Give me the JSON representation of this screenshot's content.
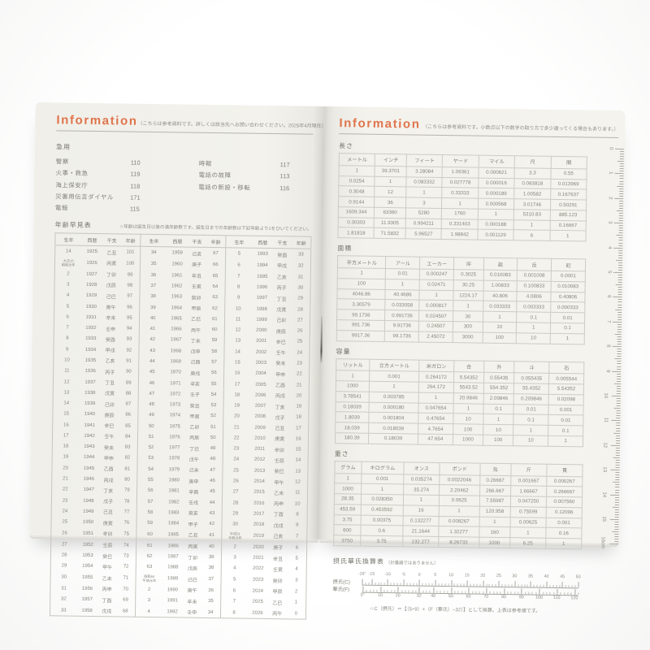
{
  "colors": {
    "accent": "#e0744c",
    "page": "#f2f1ec",
    "text": "#81817a"
  },
  "left_page": {
    "title": "Information",
    "note": "（こちらは参考資料です。詳しくは該当先へお問い合わせください。2025年4月現在）",
    "emergency": {
      "label": "急用",
      "left": [
        [
          "警察",
          "110"
        ],
        [
          "火事・救急",
          "119"
        ],
        [
          "海上保安庁",
          "118"
        ],
        [
          "災害用伝言ダイヤル",
          "171"
        ],
        [
          "電報",
          "115"
        ]
      ],
      "right": [
        [
          "時報",
          "117"
        ],
        [
          "電話の故障",
          "113"
        ],
        [
          "電話の新設・移転",
          "116"
        ]
      ]
    },
    "age_chart": {
      "label": "年齢早見表",
      "note": "☆年齢は誕生日以後の満年齢数です。誕生日までの年齢数は下記年齢より1をひいてください。",
      "columns": [
        "生年",
        "西暦",
        "干支",
        "年齢",
        "生年",
        "西暦",
        "干支",
        "年齢",
        "生年",
        "西暦",
        "干支",
        "年齢"
      ],
      "rows": [
        [
          "14",
          "1925",
          "乙丑",
          "101",
          "34",
          "1959",
          "己亥",
          "67",
          "5",
          "1993",
          "癸酉",
          "33"
        ],
        [
          "大正15\n昭和元年",
          "1926",
          "丙寅",
          "100",
          "35",
          "1960",
          "庚子",
          "66",
          "6",
          "1994",
          "甲戌",
          "32"
        ],
        [
          "2",
          "1927",
          "丁卯",
          "99",
          "36",
          "1961",
          "辛丑",
          "65",
          "7",
          "1995",
          "乙亥",
          "31"
        ],
        [
          "3",
          "1928",
          "戊辰",
          "98",
          "37",
          "1962",
          "壬寅",
          "64",
          "8",
          "1996",
          "丙子",
          "30"
        ],
        [
          "4",
          "1929",
          "己巳",
          "97",
          "38",
          "1963",
          "癸卯",
          "63",
          "9",
          "1997",
          "丁丑",
          "29"
        ],
        [
          "5",
          "1930",
          "庚午",
          "96",
          "39",
          "1964",
          "甲辰",
          "62",
          "10",
          "1998",
          "戊寅",
          "28"
        ],
        [
          "6",
          "1931",
          "辛未",
          "95",
          "40",
          "1965",
          "乙巳",
          "61",
          "11",
          "1999",
          "己卯",
          "27"
        ],
        [
          "7",
          "1932",
          "壬申",
          "94",
          "41",
          "1966",
          "丙午",
          "60",
          "12",
          "2000",
          "庚辰",
          "26"
        ],
        [
          "8",
          "1933",
          "癸酉",
          "93",
          "42",
          "1967",
          "丁未",
          "59",
          "13",
          "2001",
          "辛巳",
          "25"
        ],
        [
          "9",
          "1934",
          "甲戌",
          "92",
          "43",
          "1968",
          "戊申",
          "58",
          "14",
          "2002",
          "壬午",
          "24"
        ],
        [
          "10",
          "1935",
          "乙亥",
          "91",
          "44",
          "1969",
          "己酉",
          "57",
          "15",
          "2003",
          "癸未",
          "23"
        ],
        [
          "11",
          "1936",
          "丙子",
          "90",
          "45",
          "1970",
          "庚戌",
          "56",
          "16",
          "2004",
          "甲申",
          "22"
        ],
        [
          "12",
          "1937",
          "丁丑",
          "89",
          "46",
          "1971",
          "辛亥",
          "55",
          "17",
          "2005",
          "乙酉",
          "21"
        ],
        [
          "13",
          "1938",
          "戊寅",
          "88",
          "47",
          "1972",
          "壬子",
          "54",
          "18",
          "2006",
          "丙戌",
          "20"
        ],
        [
          "14",
          "1939",
          "己卯",
          "87",
          "48",
          "1973",
          "癸丑",
          "53",
          "19",
          "2007",
          "丁亥",
          "19"
        ],
        [
          "15",
          "1940",
          "庚辰",
          "86",
          "49",
          "1974",
          "甲寅",
          "52",
          "20",
          "2008",
          "戊子",
          "18"
        ],
        [
          "16",
          "1941",
          "辛巳",
          "85",
          "50",
          "1975",
          "乙卯",
          "51",
          "21",
          "2009",
          "己丑",
          "17"
        ],
        [
          "17",
          "1942",
          "壬午",
          "84",
          "51",
          "1976",
          "丙辰",
          "50",
          "22",
          "2010",
          "庚寅",
          "16"
        ],
        [
          "18",
          "1943",
          "癸未",
          "83",
          "52",
          "1977",
          "丁巳",
          "49",
          "23",
          "2011",
          "辛卯",
          "15"
        ],
        [
          "19",
          "1944",
          "甲申",
          "82",
          "53",
          "1978",
          "戊午",
          "48",
          "24",
          "2012",
          "壬辰",
          "14"
        ],
        [
          "20",
          "1945",
          "乙酉",
          "81",
          "54",
          "1979",
          "己未",
          "47",
          "25",
          "2013",
          "癸巳",
          "13"
        ],
        [
          "21",
          "1946",
          "丙戌",
          "80",
          "55",
          "1980",
          "庚申",
          "46",
          "26",
          "2014",
          "甲午",
          "12"
        ],
        [
          "22",
          "1947",
          "丁亥",
          "79",
          "56",
          "1981",
          "辛酉",
          "45",
          "27",
          "2015",
          "乙未",
          "11"
        ],
        [
          "23",
          "1948",
          "戊子",
          "78",
          "57",
          "1982",
          "壬戌",
          "44",
          "28",
          "2016",
          "丙申",
          "10"
        ],
        [
          "24",
          "1949",
          "己丑",
          "77",
          "58",
          "1983",
          "癸亥",
          "43",
          "29",
          "2017",
          "丁酉",
          "9"
        ],
        [
          "25",
          "1950",
          "庚寅",
          "76",
          "59",
          "1984",
          "甲子",
          "42",
          "30",
          "2018",
          "戊戌",
          "8"
        ],
        [
          "26",
          "1951",
          "辛卯",
          "75",
          "60",
          "1985",
          "乙丑",
          "41",
          "平成31\n令和元年",
          "2019",
          "己亥",
          "7"
        ],
        [
          "27",
          "1952",
          "壬辰",
          "74",
          "61",
          "1986",
          "丙寅",
          "40",
          "2",
          "2020",
          "庚子",
          "6"
        ],
        [
          "28",
          "1953",
          "癸巳",
          "73",
          "62",
          "1987",
          "丁卯",
          "39",
          "3",
          "2021",
          "辛丑",
          "5"
        ],
        [
          "29",
          "1954",
          "甲午",
          "72",
          "63",
          "1988",
          "戊辰",
          "38",
          "4",
          "2022",
          "壬寅",
          "4"
        ],
        [
          "30",
          "1955",
          "乙未",
          "71",
          "昭和64\n平成元年",
          "1989",
          "己巳",
          "37",
          "5",
          "2023",
          "癸卯",
          "3"
        ],
        [
          "31",
          "1956",
          "丙申",
          "70",
          "2",
          "1990",
          "庚午",
          "36",
          "6",
          "2024",
          "甲辰",
          "2"
        ],
        [
          "32",
          "1957",
          "丁酉",
          "69",
          "3",
          "1991",
          "辛未",
          "35",
          "7",
          "2025",
          "乙巳",
          "1"
        ],
        [
          "33",
          "1958",
          "戊戌",
          "68",
          "4",
          "1992",
          "壬申",
          "34",
          "8",
          "2026",
          "丙午",
          "0"
        ]
      ]
    }
  },
  "right_page": {
    "title": "Information",
    "note": "（こちらは参考資料です。小数点以下の数字の取り方で多少違ってくる場合もあります。）",
    "tables": [
      {
        "label": "長さ",
        "columns": [
          "メートル",
          "インチ",
          "フィート",
          "ヤード",
          "マイル",
          "尺",
          "間"
        ],
        "rows": [
          [
            "1",
            "39.3701",
            "3.28084",
            "1.09361",
            "0.000621",
            "3.3",
            "0.55"
          ],
          [
            "0.0254",
            "1",
            "0.083332",
            "0.027778",
            "0.000016",
            "0.083818",
            "0.013969"
          ],
          [
            "0.3048",
            "12",
            "1",
            "0.33333",
            "0.000189",
            "1.00582",
            "0.167637"
          ],
          [
            "0.9144",
            "36",
            "3",
            "1",
            "0.000568",
            "3.01746",
            "0.50291"
          ],
          [
            "1609.344",
            "63360",
            "5280",
            "1760",
            "1",
            "5310.83",
            "885.123"
          ],
          [
            "0.30303",
            "11.9305",
            "0.994211",
            "0.331403",
            "0.000188",
            "1",
            "0.16667"
          ],
          [
            "1.81818",
            "71.5832",
            "5.96527",
            "1.98842",
            "0.001129",
            "6",
            "1"
          ]
        ]
      },
      {
        "label": "面積",
        "columns": [
          "平方メートル",
          "アール",
          "エーカー",
          "坪",
          "畝",
          "反",
          "町"
        ],
        "rows": [
          [
            "1",
            "0.01",
            "0.000247",
            "0.3025",
            "0.010083",
            "0.001008",
            "0.0001"
          ],
          [
            "100",
            "1",
            "0.02471",
            "30.25",
            "1.00833",
            "0.100833",
            "0.010083"
          ],
          [
            "4046.86",
            "40.4686",
            "1",
            "1224.17",
            "40.806",
            "4.0806",
            "0.40806"
          ],
          [
            "3.30579",
            "0.033058",
            "0.000817",
            "1",
            "0.033333",
            "0.003333",
            "0.000333"
          ],
          [
            "99.1736",
            "0.991736",
            "0.024507",
            "30",
            "1",
            "0.1",
            "0.01"
          ],
          [
            "991.736",
            "9.91736",
            "0.24507",
            "300",
            "10",
            "1",
            "0.1"
          ],
          [
            "9917.36",
            "99.1736",
            "2.45072",
            "3000",
            "100",
            "10",
            "1"
          ]
        ]
      },
      {
        "label": "容量",
        "columns": [
          "リットル",
          "立方メートル",
          "米ガロン",
          "合",
          "升",
          "斗",
          "石"
        ],
        "rows": [
          [
            "1",
            "0.001",
            "0.264172",
            "5.54352",
            "0.55435",
            "0.055435",
            "0.005544"
          ],
          [
            "1000",
            "1",
            "264.172",
            "5543.52",
            "554.352",
            "55.4352",
            "5.54352"
          ],
          [
            "3.78541",
            "0.003785",
            "1",
            "20.9846",
            "2.09846",
            "0.209846",
            "0.02098"
          ],
          [
            "0.18039",
            "0.000180",
            "0.047654",
            "1",
            "0.1",
            "0.01",
            "0.001"
          ],
          [
            "1.8039",
            "0.001804",
            "0.47654",
            "10",
            "1",
            "0.1",
            "0.01"
          ],
          [
            "18.039",
            "0.018039",
            "4.7654",
            "100",
            "10",
            "1",
            "0.1"
          ],
          [
            "180.39",
            "0.18039",
            "47.654",
            "1000",
            "100",
            "10",
            "1"
          ]
        ]
      },
      {
        "label": "重さ",
        "columns": [
          "グラム",
          "キログラム",
          "オンス",
          "ポンド",
          "匁",
          "斤",
          "貫"
        ],
        "rows": [
          [
            "1",
            "0.001",
            "0.035274",
            "0.0022046",
            "0.26667",
            "0.001667",
            "0.000267"
          ],
          [
            "1000",
            "1",
            "35.274",
            "2.20462",
            "266.667",
            "1.66667",
            "0.266667"
          ],
          [
            "28.35",
            "0.028350",
            "1",
            "0.0625",
            "7.55987",
            "0.047250",
            "0.007560"
          ],
          [
            "453.59",
            "0.453592",
            "16",
            "1",
            "120.958",
            "0.75599",
            "0.12096"
          ],
          [
            "3.75",
            "0.00375",
            "0.132277",
            "0.008267",
            "1",
            "0.00625",
            "0.001"
          ],
          [
            "600",
            "0.6",
            "21.1644",
            "1.32277",
            "160",
            "1",
            "0.16"
          ],
          [
            "3750",
            "3.75",
            "132.277",
            "8.26733",
            "1000",
            "6.25",
            "1"
          ]
        ]
      }
    ],
    "temperature": {
      "label": "摂氏華氏換算表",
      "sublabel": "（計量器ではありません）",
      "celsius_label": "摂氏(C)",
      "fahrenheit_label": "華氏(F)",
      "celsius_ticks": [
        [
          "-18°",
          -18
        ],
        [
          "-15",
          -15
        ],
        [
          "-10",
          -10
        ],
        [
          "-5",
          -5
        ],
        [
          "0",
          0
        ],
        [
          "5",
          5
        ],
        [
          "10",
          10
        ],
        [
          "15",
          15
        ],
        [
          "20",
          20
        ],
        [
          "25",
          25
        ],
        [
          "30",
          30
        ],
        [
          "35",
          35
        ],
        [
          "40",
          40
        ],
        [
          "45",
          45
        ],
        [
          "50",
          50
        ]
      ],
      "fahrenheit_ticks": [
        [
          "0°",
          0
        ],
        [
          "10",
          10
        ],
        [
          "20",
          20
        ],
        [
          "32",
          32
        ],
        [
          "40",
          40
        ],
        [
          "50",
          50
        ],
        [
          "60",
          60
        ],
        [
          "70",
          70
        ],
        [
          "80",
          80
        ],
        [
          "90",
          90
        ],
        [
          "100",
          100
        ],
        [
          "110",
          110
        ],
        [
          "120",
          120
        ]
      ],
      "note": "☆C（摂氏）＝【（5÷9）×（F（華氏）−32）】として換算。上表は参考値です。"
    },
    "ruler": {
      "numbers": [
        "0",
        "1",
        "2",
        "3",
        "4",
        "5",
        "6",
        "7",
        "8",
        "9",
        "10",
        "11",
        "12",
        "13",
        "14",
        "15"
      ],
      "end_label": "16cm"
    }
  }
}
